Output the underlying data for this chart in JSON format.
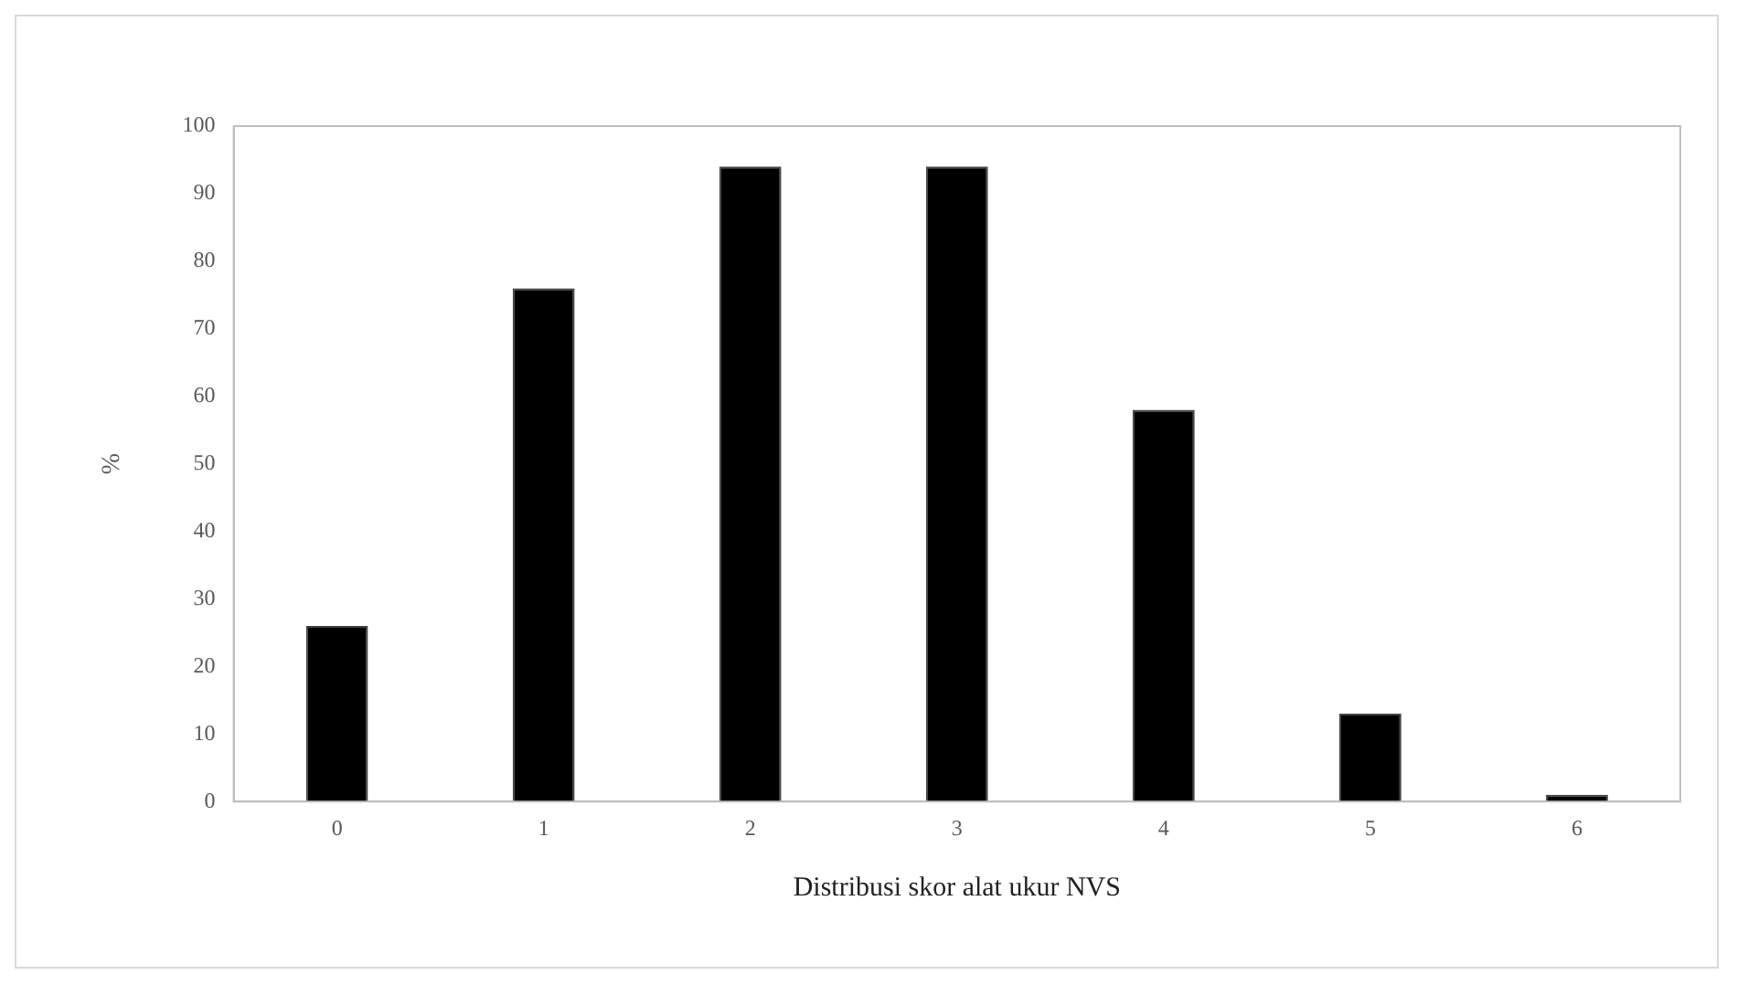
{
  "chart_data": {
    "type": "bar",
    "xlabel": "Distribusi skor alat ukur NVS",
    "ylabel": "%",
    "categories": [
      "0",
      "1",
      "2",
      "3",
      "4",
      "5",
      "6"
    ],
    "values": [
      26,
      76,
      94,
      94,
      58,
      13,
      1
    ],
    "color": "#000000",
    "ylim": [
      0,
      100
    ],
    "yticks": [
      0,
      10,
      20,
      30,
      40,
      50,
      60,
      70,
      80,
      90,
      100
    ],
    "grid": false,
    "legend": false
  }
}
